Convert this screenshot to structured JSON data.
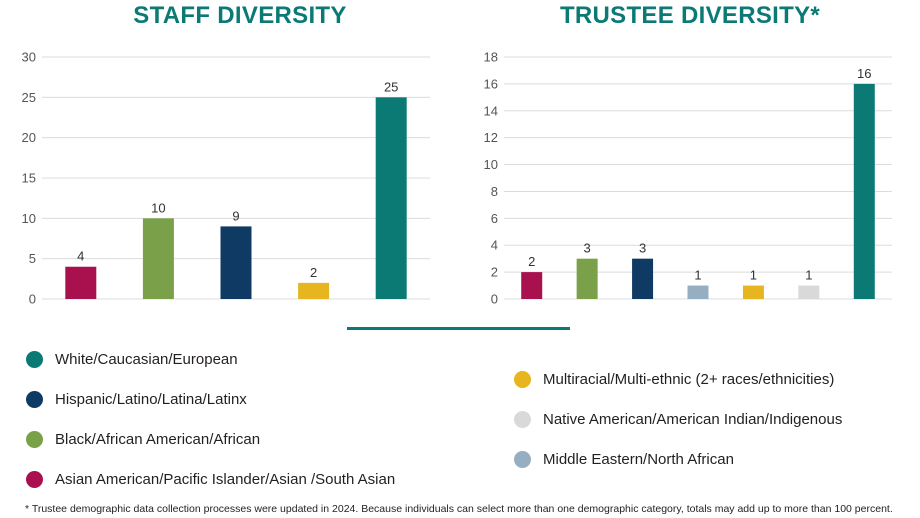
{
  "colors": {
    "white": "#0b7a75",
    "hispanic": "#0e3a63",
    "black": "#7aa14a",
    "asian": "#a8114d",
    "multiracial": "#e6b51f",
    "native": "#d9d9d9",
    "middle_eastern": "#96aec2",
    "title": "#0b7a75",
    "grid": "#dcdcdc"
  },
  "chart_data": [
    {
      "type": "bar",
      "title": "STAFF DIVERSITY",
      "categories": [
        "Asian American/Pacific Islander/Asian /South Asian",
        "Black/African American/African",
        "Hispanic/Latino/Latina/Latinx",
        "Multiracial/Multi-ethnic (2+ races/ethnicities)",
        "White/Caucasian/European"
      ],
      "values": [
        4,
        10,
        9,
        2,
        25
      ],
      "bar_colors": [
        "#a8114d",
        "#7aa14a",
        "#0e3a63",
        "#e6b51f",
        "#0b7a75"
      ],
      "ylim": [
        0,
        30
      ],
      "yticks": [
        0,
        5,
        10,
        15,
        20,
        25,
        30
      ],
      "grid": true,
      "xlabel": "",
      "ylabel": ""
    },
    {
      "type": "bar",
      "title": "TRUSTEE DIVERSITY*",
      "categories": [
        "Asian American/Pacific Islander/Asian /South Asian",
        "Black/African American/African",
        "Hispanic/Latino/Latina/Latinx",
        "Middle Eastern/North African",
        "Multiracial/Multi-ethnic (2+ races/ethnicities)",
        "Native American/American Indian/Indigenous",
        "White/Caucasian/European"
      ],
      "values": [
        2,
        3,
        3,
        1,
        1,
        1,
        16
      ],
      "bar_colors": [
        "#a8114d",
        "#7aa14a",
        "#0e3a63",
        "#96aec2",
        "#e6b51f",
        "#d9d9d9",
        "#0b7a75"
      ],
      "ylim": [
        0,
        18
      ],
      "yticks": [
        0,
        2,
        4,
        6,
        8,
        10,
        12,
        14,
        16,
        18
      ],
      "grid": true,
      "xlabel": "",
      "ylabel": ""
    }
  ],
  "legend": {
    "left": [
      {
        "label": "White/Caucasian/European",
        "color": "#0b7a75",
        "icon": "circle-icon"
      },
      {
        "label": "Hispanic/Latino/Latina/Latinx",
        "color": "#0e3a63",
        "icon": "circle-icon"
      },
      {
        "label": "Black/African American/African",
        "color": "#7aa14a",
        "icon": "circle-icon"
      },
      {
        "label": "Asian American/Pacific Islander/Asian /South Asian",
        "color": "#a8114d",
        "icon": "circle-icon"
      }
    ],
    "right": [
      {
        "label": "Multiracial/Multi-ethnic (2+ races/ethnicities)",
        "color": "#e6b51f",
        "icon": "circle-icon"
      },
      {
        "label": "Native American/American Indian/Indigenous",
        "color": "#d9d9d9",
        "icon": "circle-icon"
      },
      {
        "label": "Middle Eastern/North African",
        "color": "#96aec2",
        "icon": "circle-icon"
      }
    ]
  },
  "footnote": "* Trustee demographic data collection processes were updated in 2024. Because individuals can select more than one demographic category, totals may add up to more than 100 percent."
}
